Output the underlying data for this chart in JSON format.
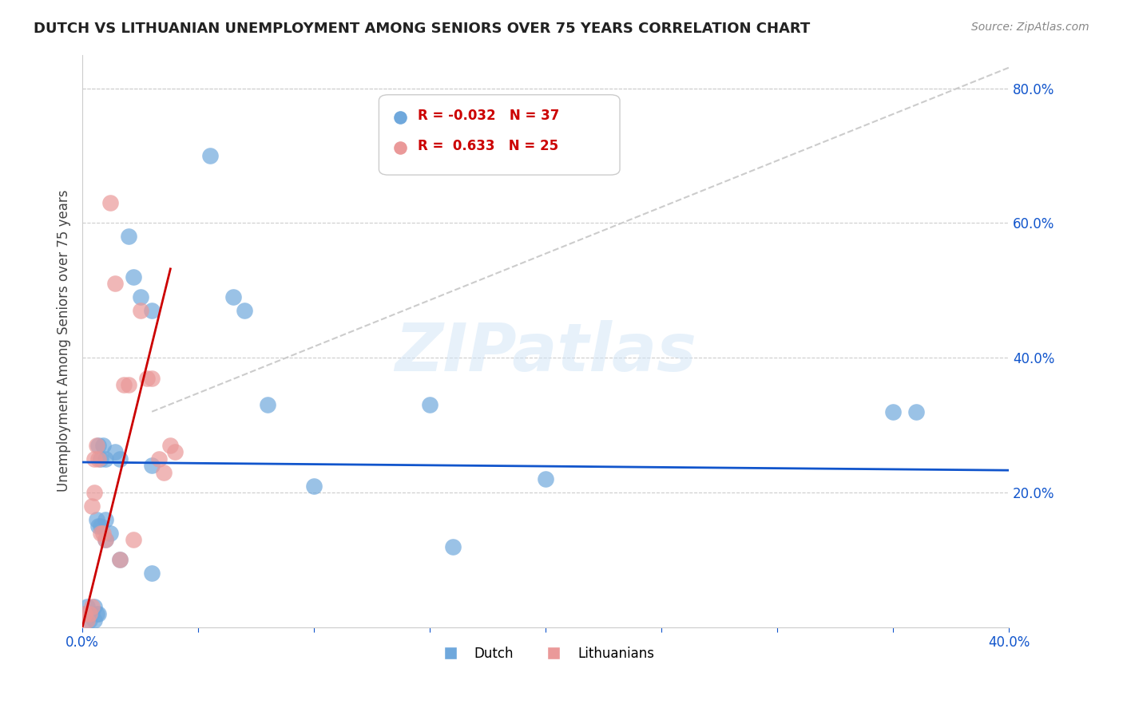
{
  "title": "DUTCH VS LITHUANIAN UNEMPLOYMENT AMONG SENIORS OVER 75 YEARS CORRELATION CHART",
  "source": "Source: ZipAtlas.com",
  "ylabel": "Unemployment Among Seniors over 75 years",
  "xlim": [
    0.0,
    0.4
  ],
  "ylim": [
    0.0,
    0.85
  ],
  "xticks": [
    0.0,
    0.05,
    0.1,
    0.15,
    0.2,
    0.25,
    0.3,
    0.35,
    0.4
  ],
  "yticks_right": [
    0.2,
    0.4,
    0.6,
    0.8
  ],
  "ytickslabels_right": [
    "20.0%",
    "40.0%",
    "60.0%",
    "80.0%"
  ],
  "dutch_color": "#6fa8dc",
  "lithuanian_color": "#ea9999",
  "dutch_trend_color": "#1155cc",
  "lithuanian_trend_color": "#cc0000",
  "diagonal_color": "#cccccc",
  "legend_r_dutch": "-0.032",
  "legend_n_dutch": "37",
  "legend_r_lith": "0.633",
  "legend_n_lith": "25",
  "watermark": "ZIPatlas",
  "dutch_points": [
    [
      0.001,
      0.02
    ],
    [
      0.002,
      0.03
    ],
    [
      0.003,
      0.01
    ],
    [
      0.004,
      0.02
    ],
    [
      0.005,
      0.01
    ],
    [
      0.005,
      0.03
    ],
    [
      0.006,
      0.02
    ],
    [
      0.006,
      0.16
    ],
    [
      0.007,
      0.02
    ],
    [
      0.007,
      0.15
    ],
    [
      0.007,
      0.27
    ],
    [
      0.008,
      0.15
    ],
    [
      0.008,
      0.25
    ],
    [
      0.009,
      0.27
    ],
    [
      0.01,
      0.13
    ],
    [
      0.01,
      0.16
    ],
    [
      0.01,
      0.25
    ],
    [
      0.012,
      0.14
    ],
    [
      0.014,
      0.26
    ],
    [
      0.016,
      0.25
    ],
    [
      0.016,
      0.1
    ],
    [
      0.02,
      0.58
    ],
    [
      0.022,
      0.52
    ],
    [
      0.025,
      0.49
    ],
    [
      0.03,
      0.47
    ],
    [
      0.03,
      0.24
    ],
    [
      0.03,
      0.08
    ],
    [
      0.055,
      0.7
    ],
    [
      0.065,
      0.49
    ],
    [
      0.07,
      0.47
    ],
    [
      0.08,
      0.33
    ],
    [
      0.1,
      0.21
    ],
    [
      0.15,
      0.33
    ],
    [
      0.16,
      0.12
    ],
    [
      0.2,
      0.22
    ],
    [
      0.35,
      0.32
    ],
    [
      0.36,
      0.32
    ]
  ],
  "lithuanian_points": [
    [
      0.001,
      0.02
    ],
    [
      0.002,
      0.01
    ],
    [
      0.003,
      0.02
    ],
    [
      0.004,
      0.03
    ],
    [
      0.004,
      0.18
    ],
    [
      0.005,
      0.2
    ],
    [
      0.005,
      0.25
    ],
    [
      0.006,
      0.27
    ],
    [
      0.007,
      0.25
    ],
    [
      0.008,
      0.14
    ],
    [
      0.009,
      0.14
    ],
    [
      0.01,
      0.13
    ],
    [
      0.012,
      0.63
    ],
    [
      0.014,
      0.51
    ],
    [
      0.016,
      0.1
    ],
    [
      0.018,
      0.36
    ],
    [
      0.02,
      0.36
    ],
    [
      0.022,
      0.13
    ],
    [
      0.025,
      0.47
    ],
    [
      0.028,
      0.37
    ],
    [
      0.03,
      0.37
    ],
    [
      0.033,
      0.25
    ],
    [
      0.035,
      0.23
    ],
    [
      0.038,
      0.27
    ],
    [
      0.04,
      0.26
    ]
  ]
}
